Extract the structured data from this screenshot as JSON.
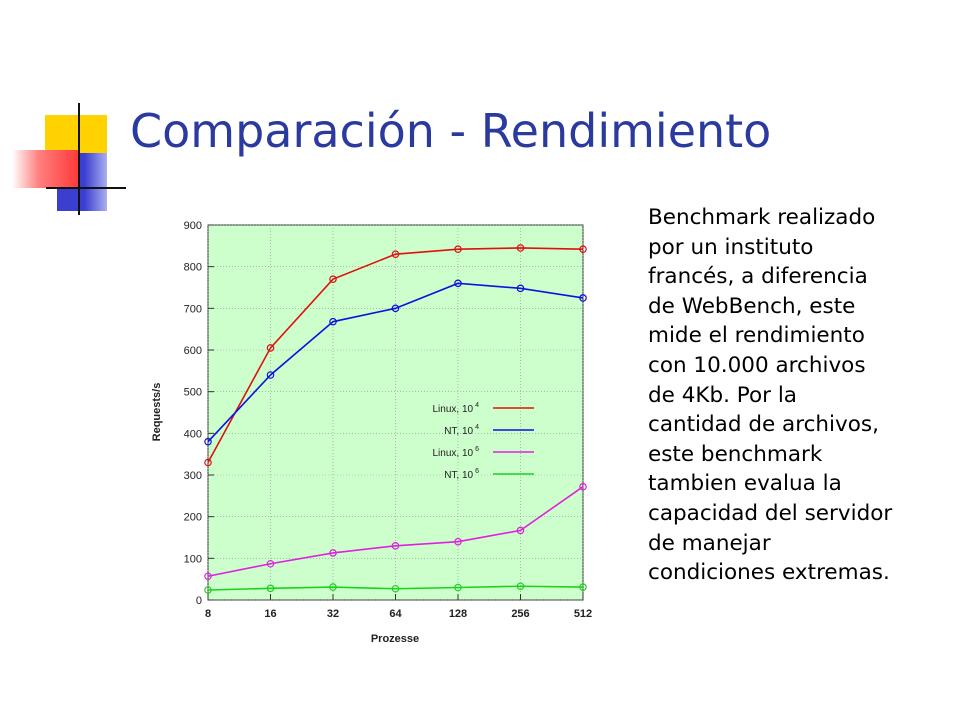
{
  "slide": {
    "title": "Comparación - Rendimiento",
    "body_lines": [
      "Benchmark realizado",
      "por un instituto",
      "francés, a diferencia",
      "de WebBench, este",
      "mide el rendimiento",
      "con 10.000 archivos",
      "de 4Kb.  Por la",
      "cantidad de archivos,",
      "este benchmark",
      "tambien evalua la",
      "capacidad del servidor",
      "de manejar",
      "condiciones extremas."
    ],
    "colors": {
      "title": "#2b3a9e",
      "deco_yellow": "#ffd200",
      "deco_blue": "#3a3fd0",
      "deco_red": "#ff4a4a"
    }
  },
  "chart_data": {
    "type": "line",
    "title": "",
    "xlabel": "Prozesse",
    "ylabel": "Requests/s",
    "categories": [
      "8",
      "16",
      "32",
      "64",
      "128",
      "256",
      "512"
    ],
    "ylim": [
      0,
      900
    ],
    "yticks": [
      "0",
      "100",
      "200",
      "300",
      "400",
      "500",
      "600",
      "700",
      "800",
      "900"
    ],
    "background": "#ccffcc",
    "legend_position": "center-right",
    "series": [
      {
        "name": "Linux, 10",
        "exp": "4",
        "color": "#e01010",
        "values": [
          330,
          605,
          770,
          830,
          842,
          845,
          842
        ]
      },
      {
        "name": "NT, 10",
        "exp": "4",
        "color": "#1010e0",
        "values": [
          380,
          540,
          668,
          700,
          760,
          748,
          725
        ]
      },
      {
        "name": "Linux, 10",
        "exp": "6",
        "color": "#e020e0",
        "values": [
          57,
          87,
          113,
          130,
          140,
          167,
          272
        ]
      },
      {
        "name": "NT, 10",
        "exp": "6",
        "color": "#20d020",
        "values": [
          24,
          28,
          31,
          27,
          30,
          33,
          31
        ]
      }
    ]
  }
}
